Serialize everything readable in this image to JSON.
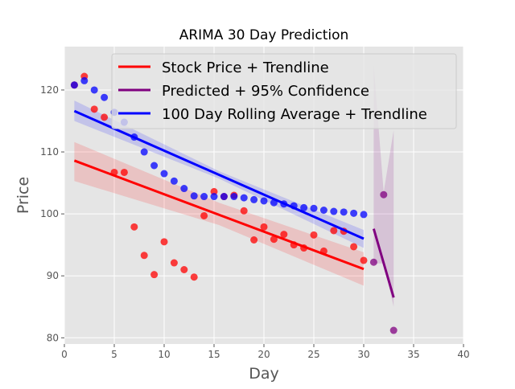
{
  "chart_data": {
    "type": "scatter",
    "title": "ARIMA 30 Day Prediction",
    "xlabel": "Day",
    "ylabel": "Price",
    "xlim": [
      0,
      40
    ],
    "ylim": [
      79,
      127
    ],
    "xticks": [
      0,
      5,
      10,
      15,
      20,
      25,
      30,
      35,
      40
    ],
    "yticks": [
      80,
      90,
      100,
      110,
      120
    ],
    "grid": true,
    "legend_position": "top-right",
    "colors": {
      "stock": "#ff0000",
      "predicted": "#800080",
      "rolling": "#0000ff",
      "plot_bg": "#e5e5e5",
      "grid": "#ffffff"
    },
    "series": [
      {
        "name": "Stock Price + Trendline",
        "key": "stock",
        "x": [
          1,
          2,
          3,
          4,
          5,
          6,
          7,
          8,
          9,
          10,
          11,
          12,
          13,
          14,
          15,
          16,
          17,
          18,
          19,
          20,
          21,
          22,
          23,
          24,
          25,
          26,
          27,
          28,
          29,
          30
        ],
        "y": [
          120.8,
          122.2,
          116.9,
          115.6,
          106.7,
          106.7,
          97.9,
          93.3,
          90.2,
          95.5,
          92.1,
          91.0,
          89.8,
          99.7,
          103.6,
          102.8,
          103.0,
          100.5,
          95.8,
          97.9,
          95.9,
          96.7,
          95.0,
          94.5,
          96.6,
          94.0,
          97.3,
          97.2,
          94.7,
          92.5
        ],
        "trend": {
          "x": [
            1,
            30
          ],
          "y": [
            108.6,
            91.1
          ]
        },
        "band": {
          "x": [
            1,
            15.5,
            30
          ],
          "upper": [
            111.6,
            101.8,
            93.8
          ],
          "lower": [
            105.3,
            98.2,
            88.4
          ]
        }
      },
      {
        "name": "Predicted + 95% Confidence",
        "key": "predicted",
        "x": [
          31,
          32,
          33
        ],
        "y": [
          92.2,
          103.1,
          81.2
        ],
        "trend": {
          "x": [
            31,
            33
          ],
          "y": [
            97.6,
            86.5
          ]
        },
        "band": {
          "x": [
            31,
            32,
            33
          ],
          "upper": [
            124.0,
            103.5,
            113.5
          ],
          "lower": [
            92.0,
            92.0,
            85.0
          ]
        }
      },
      {
        "name": "100 Day Rolling Average + Trendline",
        "key": "rolling",
        "x": [
          1,
          2,
          3,
          4,
          5,
          6,
          7,
          8,
          9,
          10,
          11,
          12,
          13,
          14,
          15,
          16,
          17,
          18,
          19,
          20,
          21,
          22,
          23,
          24,
          25,
          26,
          27,
          28,
          29,
          30
        ],
        "y": [
          120.8,
          121.5,
          120.0,
          118.8,
          116.4,
          114.8,
          112.4,
          110.0,
          107.8,
          106.5,
          105.3,
          104.1,
          102.9,
          102.8,
          102.8,
          102.8,
          102.8,
          102.6,
          102.3,
          102.1,
          101.8,
          101.6,
          101.3,
          101.0,
          100.9,
          100.6,
          100.4,
          100.3,
          100.1,
          99.9
        ],
        "trend": {
          "x": [
            1,
            30
          ],
          "y": [
            116.6,
            96.0
          ]
        },
        "band": {
          "x": [
            1,
            15.5,
            30
          ],
          "upper": [
            118.3,
            106.9,
            97.4
          ],
          "lower": [
            115.0,
            105.7,
            94.5
          ]
        }
      }
    ]
  }
}
